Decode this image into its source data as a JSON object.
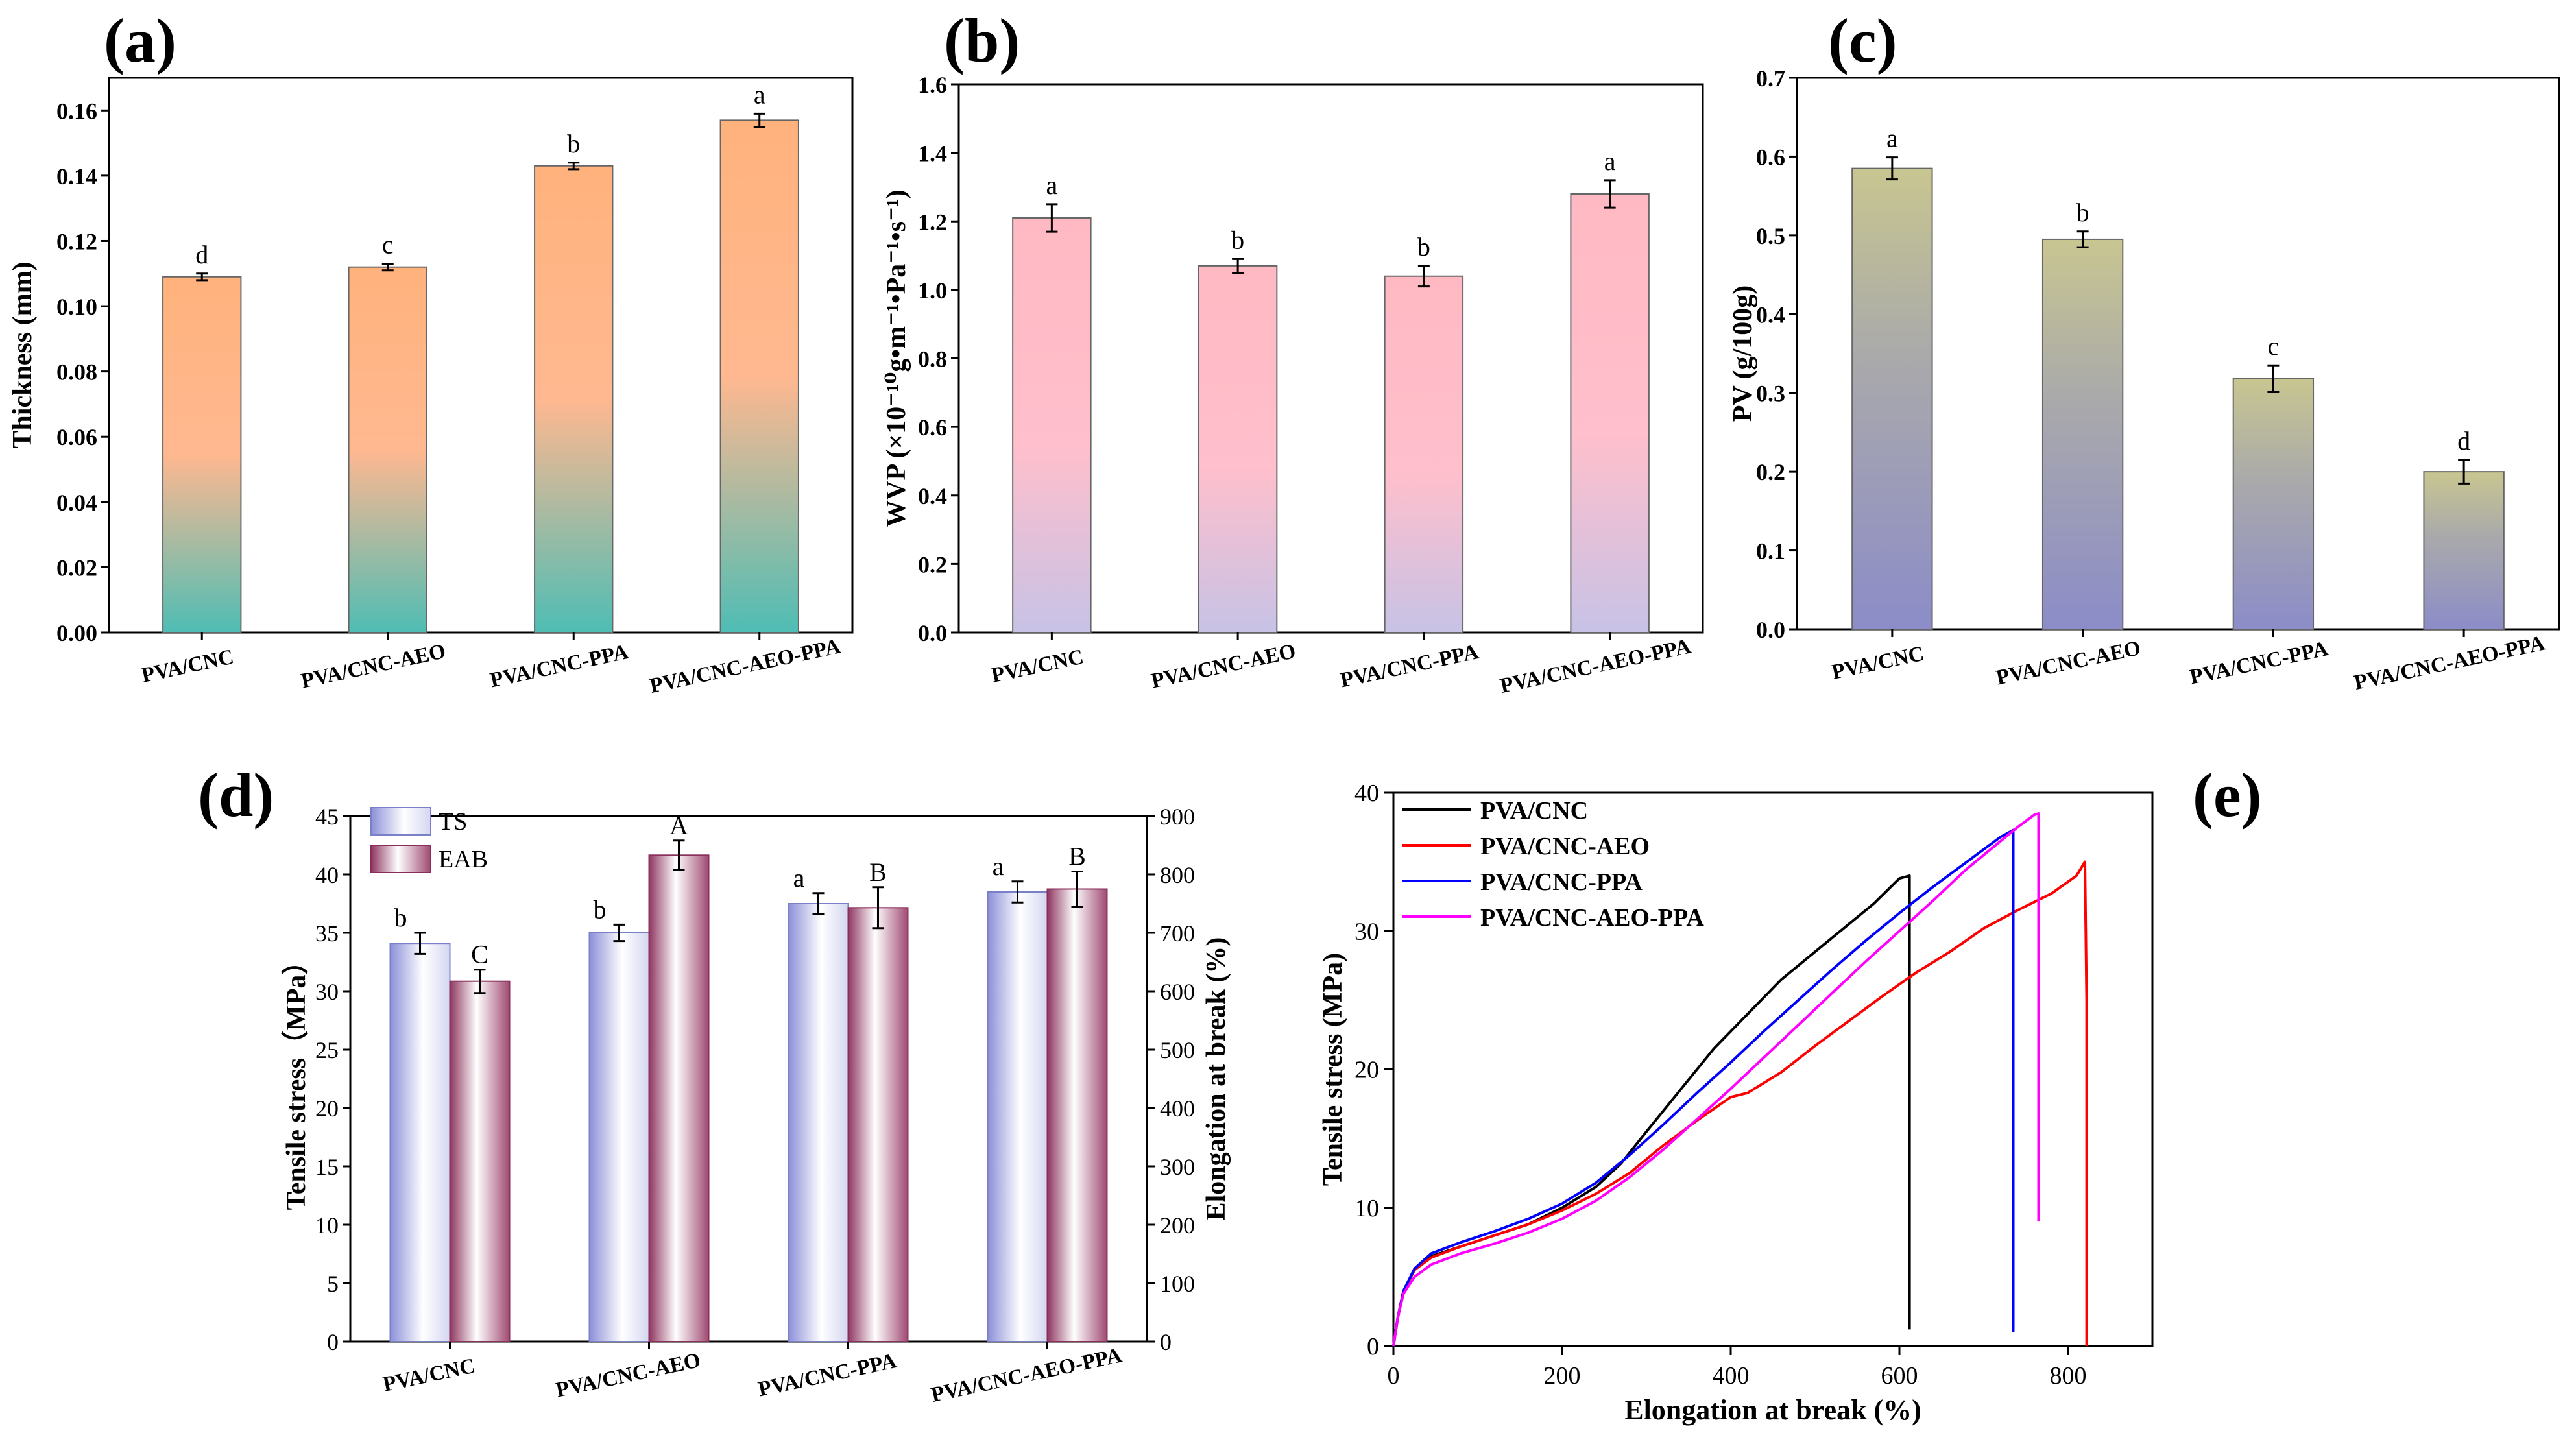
{
  "colors": {
    "a_top": "#ffb27c",
    "a_bottom": "#4fbdb4",
    "b_top": "#ffb9c3",
    "b_bottom": "#c7c2e6",
    "c_top": "#c8c690",
    "c_bottom": "#8c8cc8",
    "ts_edge": "#7a80c8",
    "eab_edge": "#8a2e5a",
    "pva_cnc": "#000000",
    "pva_cnc_aeo": "#ff0000",
    "pva_cnc_ppa": "#0000ff",
    "pva_cnc_aeo_ppa": "#ff00ff"
  },
  "chart_data": [
    {
      "panel": "(a)",
      "type": "bar",
      "categories": [
        "PVA/CNC",
        "PVA/CNC-AEO",
        "PVA/CNC-PPA",
        "PVA/CNC-AEO-PPA"
      ],
      "values": [
        0.109,
        0.112,
        0.143,
        0.157
      ],
      "errors": [
        0.001,
        0.001,
        0.001,
        0.002
      ],
      "letters": [
        "d",
        "c",
        "b",
        "a"
      ],
      "ylabel": "Thickness (mm)",
      "ylim": [
        0,
        0.17
      ],
      "yticks": [
        "0.00",
        "0.02",
        "0.04",
        "0.06",
        "0.08",
        "0.10",
        "0.12",
        "0.14",
        "0.16"
      ]
    },
    {
      "panel": "(b)",
      "type": "bar",
      "categories": [
        "PVA/CNC",
        "PVA/CNC-AEO",
        "PVA/CNC-PPA",
        "PVA/CNC-AEO-PPA"
      ],
      "values": [
        1.21,
        1.07,
        1.04,
        1.28
      ],
      "errors": [
        0.04,
        0.02,
        0.03,
        0.04
      ],
      "letters": [
        "a",
        "b",
        "b",
        "a"
      ],
      "ylabel": "WVP (×10⁻¹⁰g•m⁻¹•Pa⁻¹•s⁻¹)",
      "ylim": [
        0,
        1.6
      ],
      "yticks": [
        "0.0",
        "0.2",
        "0.4",
        "0.6",
        "0.8",
        "1.0",
        "1.2",
        "1.4",
        "1.6"
      ]
    },
    {
      "panel": "(c)",
      "type": "bar",
      "categories": [
        "PVA/CNC",
        "PVA/CNC-AEO",
        "PVA/CNC-PPA",
        "PVA/CNC-AEO-PPA"
      ],
      "values": [
        0.585,
        0.495,
        0.318,
        0.2
      ],
      "errors": [
        0.014,
        0.01,
        0.017,
        0.015
      ],
      "letters": [
        "a",
        "b",
        "c",
        "d"
      ],
      "ylabel": "PV (g/100g)",
      "ylim": [
        0,
        0.7
      ],
      "yticks": [
        "0.0",
        "0.1",
        "0.2",
        "0.3",
        "0.4",
        "0.5",
        "0.6",
        "0.7"
      ]
    },
    {
      "panel": "(d)",
      "type": "bar",
      "categories": [
        "PVA/CNC",
        "PVA/CNC-AEO",
        "PVA/CNC-PPA",
        "PVA/CNC-AEO-PPA"
      ],
      "series": [
        {
          "name": "TS",
          "axis": "left",
          "values": [
            34.1,
            35.0,
            37.5,
            38.5
          ],
          "errors": [
            0.9,
            0.7,
            0.9,
            0.9
          ],
          "letters": [
            "b",
            "b",
            "a",
            "a"
          ]
        },
        {
          "name": "EAB",
          "axis": "right",
          "values": [
            617,
            833,
            743,
            775
          ],
          "errors": [
            20,
            25,
            35,
            30
          ],
          "letters": [
            "C",
            "A",
            "B",
            "B"
          ]
        }
      ],
      "ylabel": "Tensile stress（MPa）",
      "y2label": "Elongation at break (%)",
      "ylim": [
        0,
        45
      ],
      "y2lim": [
        0,
        900
      ],
      "yticks": [
        "0",
        "5",
        "10",
        "15",
        "20",
        "25",
        "30",
        "35",
        "40",
        "45"
      ],
      "y2ticks": [
        "0",
        "100",
        "200",
        "300",
        "400",
        "500",
        "600",
        "700",
        "800",
        "900"
      ]
    },
    {
      "panel": "(e)",
      "type": "line",
      "xlabel": "Elongation at break (%)",
      "ylabel": "Tensile stress (MPa)",
      "xlim": [
        0,
        900
      ],
      "ylim": [
        0,
        40
      ],
      "xticks": [
        "0",
        "200",
        "400",
        "600",
        "800"
      ],
      "yticks": [
        "0",
        "10",
        "20",
        "30",
        "40"
      ],
      "series": [
        {
          "name": "PVA/CNC",
          "x": [
            0,
            5,
            12,
            25,
            45,
            80,
            120,
            160,
            200,
            240,
            270,
            300,
            340,
            380,
            420,
            460,
            500,
            540,
            570,
            600,
            612,
            612
          ],
          "y": [
            0,
            2,
            4,
            5.5,
            6.5,
            7.2,
            8.0,
            8.8,
            10.0,
            11.5,
            13.2,
            15.5,
            18.5,
            21.5,
            24.0,
            26.5,
            28.5,
            30.5,
            32.0,
            33.8,
            34.0,
            1.2
          ]
        },
        {
          "name": "PVA/CNC-AEO",
          "x": [
            0,
            5,
            12,
            25,
            45,
            80,
            120,
            160,
            200,
            240,
            280,
            320,
            360,
            400,
            420,
            460,
            500,
            540,
            580,
            620,
            660,
            700,
            740,
            780,
            810,
            820,
            822,
            822
          ],
          "y": [
            0,
            2,
            4,
            5.5,
            6.4,
            7.2,
            8.0,
            8.8,
            9.8,
            11.0,
            12.5,
            14.5,
            16.3,
            18.0,
            18.3,
            19.8,
            21.7,
            23.5,
            25.3,
            27.0,
            28.5,
            30.2,
            31.5,
            32.7,
            34.0,
            35.0,
            25.0,
            0
          ]
        },
        {
          "name": "PVA/CNC-PPA",
          "x": [
            0,
            5,
            12,
            25,
            45,
            80,
            120,
            160,
            200,
            240,
            280,
            320,
            360,
            400,
            440,
            480,
            520,
            560,
            600,
            640,
            680,
            720,
            735,
            735
          ],
          "y": [
            0,
            2,
            4,
            5.6,
            6.7,
            7.5,
            8.3,
            9.2,
            10.3,
            11.8,
            13.8,
            16.0,
            18.3,
            20.5,
            22.8,
            25.0,
            27.2,
            29.3,
            31.3,
            33.2,
            35.0,
            36.8,
            37.3,
            1.0
          ]
        },
        {
          "name": "PVA/CNC-AEO-PPA",
          "x": [
            0,
            5,
            12,
            25,
            45,
            80,
            120,
            160,
            200,
            240,
            280,
            320,
            360,
            400,
            440,
            480,
            520,
            560,
            600,
            640,
            680,
            710,
            740,
            760,
            765,
            765
          ],
          "y": [
            0,
            2,
            3.8,
            5.0,
            5.9,
            6.7,
            7.4,
            8.2,
            9.2,
            10.5,
            12.2,
            14.2,
            16.4,
            18.6,
            20.9,
            23.2,
            25.5,
            27.8,
            30.0,
            32.2,
            34.5,
            36.0,
            37.5,
            38.4,
            38.5,
            9.0
          ]
        }
      ]
    }
  ]
}
